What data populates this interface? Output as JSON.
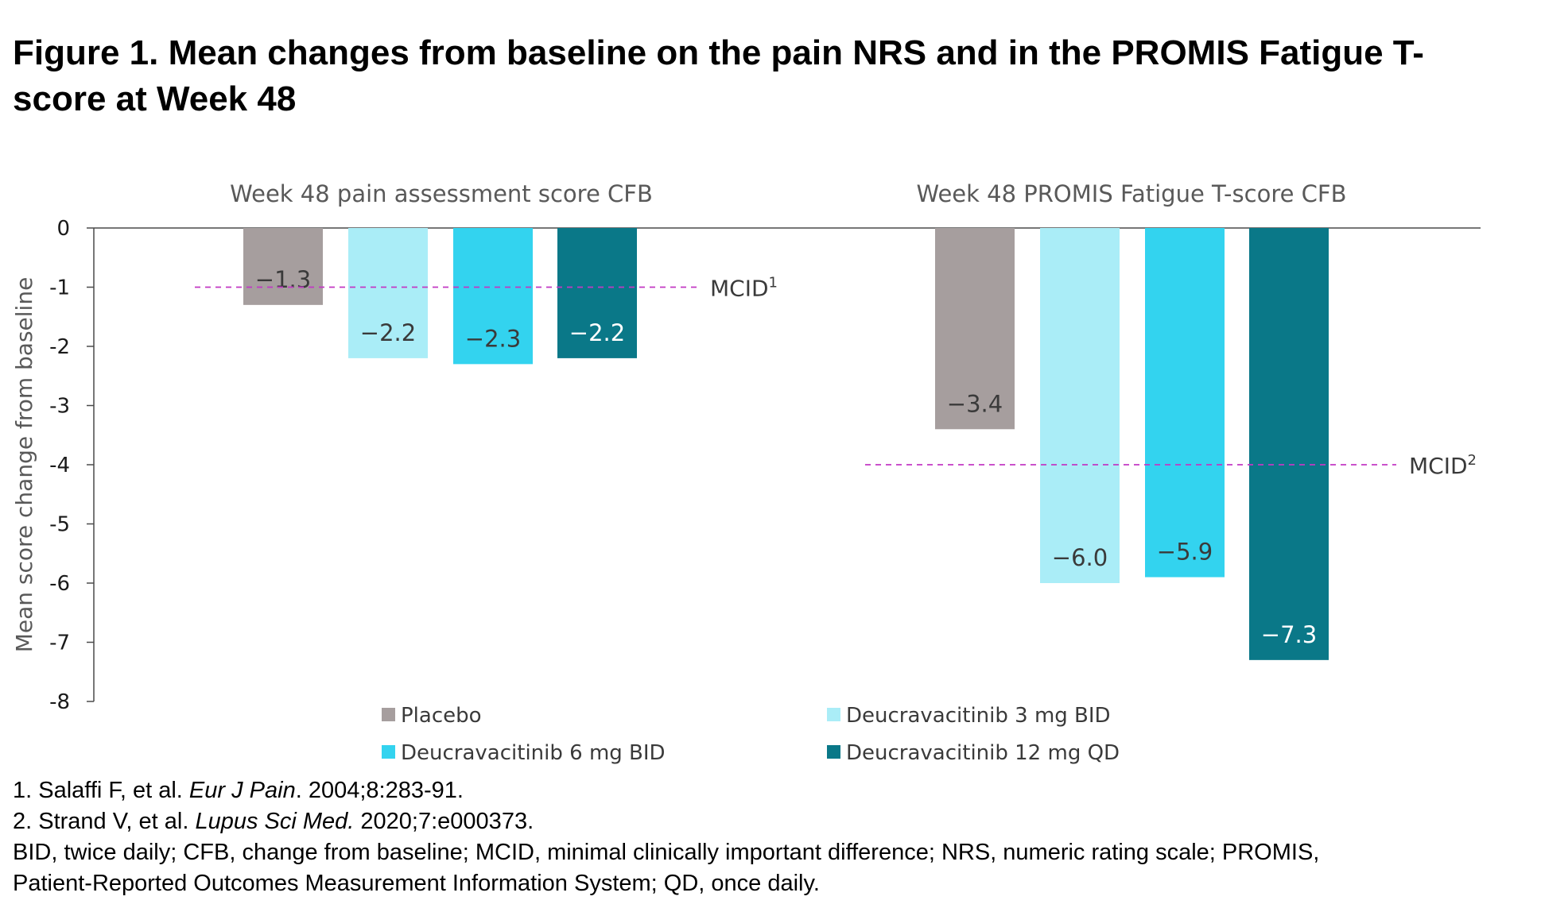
{
  "title": "Figure 1. Mean changes from baseline on the pain NRS and in the PROMIS Fatigue T-score at Week 48",
  "chart_data": {
    "type": "bar",
    "ylabel": "Mean score change from baseline",
    "ylim": [
      -8,
      0
    ],
    "yticks": [
      "0",
      "-1",
      "-2",
      "-3",
      "-4",
      "-5",
      "-6",
      "-7",
      "-8"
    ],
    "grid": false,
    "legend_position": "bottom",
    "series": [
      {
        "name": "Placebo",
        "color": "#a69e9e"
      },
      {
        "name": "Deucravacitinib 3 mg BID",
        "color": "#aaedf7"
      },
      {
        "name": "Deucravacitinib 6 mg BID",
        "color": "#33d3ef"
      },
      {
        "name": "Deucravacitinib 12 mg QD",
        "color": "#0a7888"
      }
    ],
    "panels": [
      {
        "subtitle": "Week 48 pain assessment score CFB",
        "values": [
          -1.3,
          -2.2,
          -2.3,
          -2.2
        ],
        "labels": [
          "−1.3",
          "−2.2",
          "−2.3",
          "−2.2"
        ],
        "mcid": {
          "value": -1,
          "label": "MCID",
          "sup": "1"
        }
      },
      {
        "subtitle": "Week 48 PROMIS Fatigue T-score CFB",
        "values": [
          -3.4,
          -6.0,
          -5.9,
          -7.3
        ],
        "labels": [
          "−3.4",
          "−6.0",
          "−5.9",
          "−7.3"
        ],
        "mcid": {
          "value": -4,
          "label": "MCID",
          "sup": "2"
        }
      }
    ],
    "mcid_color": "#c238c4"
  },
  "footnotes": {
    "ref1": {
      "prefix": "1. Salaffi F, et al. ",
      "journal": "Eur J Pain",
      "suffix": ". 2004;8:283-91."
    },
    "ref2": {
      "prefix": "2. Strand V, et al. ",
      "journal": "Lupus Sci Med.",
      "suffix": " 2020;7:e000373."
    },
    "abbr1": "BID, twice daily; CFB, change from baseline; MCID, minimal clinically important difference; NRS, numeric rating scale; PROMIS,",
    "abbr2": "Patient-Reported Outcomes Measurement Information System; QD, once daily."
  }
}
